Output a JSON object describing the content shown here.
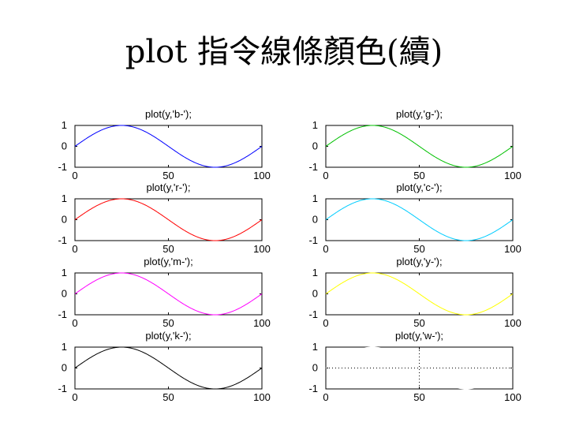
{
  "slide": {
    "title": "plot 指令線條顏色(續)"
  },
  "chart_data": [
    {
      "type": "line",
      "title": "plot(y,'b-');",
      "color": "#0000ff",
      "style": "solid",
      "function": "sin",
      "x_range": [
        0,
        100
      ],
      "ylim": [
        -1,
        1
      ],
      "xticks": [
        "0",
        "50",
        "100"
      ],
      "yticks": [
        "1",
        "0",
        "-1"
      ],
      "grid": false
    },
    {
      "type": "line",
      "title": "plot(y,'g-');",
      "color": "#00c000",
      "style": "solid",
      "function": "sin",
      "x_range": [
        0,
        100
      ],
      "ylim": [
        -1,
        1
      ],
      "xticks": [
        "0",
        "50",
        "100"
      ],
      "yticks": [
        "1",
        "0",
        "-1"
      ],
      "grid": false
    },
    {
      "type": "line",
      "title": "plot(y,'r-');",
      "color": "#ff0000",
      "style": "solid",
      "function": "sin",
      "x_range": [
        0,
        100
      ],
      "ylim": [
        -1,
        1
      ],
      "xticks": [
        "0",
        "50",
        "100"
      ],
      "yticks": [
        "1",
        "0",
        "-1"
      ],
      "grid": false
    },
    {
      "type": "line",
      "title": "plot(y,'c-');",
      "color": "#00ccff",
      "style": "solid",
      "function": "sin",
      "x_range": [
        0,
        100
      ],
      "ylim": [
        -1,
        1
      ],
      "xticks": [
        "0",
        "50",
        "100"
      ],
      "yticks": [
        "1",
        "0",
        "-1"
      ],
      "grid": false
    },
    {
      "type": "line",
      "title": "plot(y,'m-');",
      "color": "#ff00ff",
      "style": "solid",
      "function": "sin",
      "x_range": [
        0,
        100
      ],
      "ylim": [
        -1,
        1
      ],
      "xticks": [
        "0",
        "50",
        "100"
      ],
      "yticks": [
        "1",
        "0",
        "-1"
      ],
      "grid": false
    },
    {
      "type": "line",
      "title": "plot(y,'y-');",
      "color": "#ffff00",
      "style": "solid",
      "function": "sin",
      "x_range": [
        0,
        100
      ],
      "ylim": [
        -1,
        1
      ],
      "xticks": [
        "0",
        "50",
        "100"
      ],
      "yticks": [
        "1",
        "0",
        "-1"
      ],
      "grid": false
    },
    {
      "type": "line",
      "title": "plot(y,'k-');",
      "color": "#000000",
      "style": "solid",
      "function": "sin",
      "x_range": [
        0,
        100
      ],
      "ylim": [
        -1,
        1
      ],
      "xticks": [
        "0",
        "50",
        "100"
      ],
      "yticks": [
        "1",
        "0",
        "-1"
      ],
      "grid": false
    },
    {
      "type": "line",
      "title": "plot(y,'w-');",
      "color": "#ffffff",
      "style": "solid",
      "function": "sin",
      "x_range": [
        0,
        100
      ],
      "ylim": [
        -1,
        1
      ],
      "xticks": [
        "0",
        "50",
        "100"
      ],
      "yticks": [
        "1",
        "0",
        "-1"
      ],
      "grid": false,
      "dotted_crosshair": {
        "x": 50,
        "y": 0,
        "color": "#000000"
      }
    }
  ]
}
